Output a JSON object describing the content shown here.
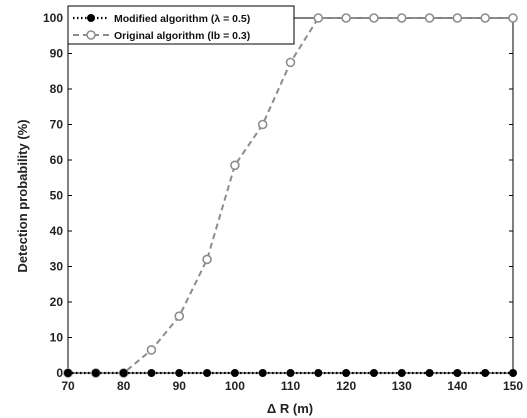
{
  "chart_data": {
    "type": "line",
    "xlabel": "Δ R (m)",
    "ylabel": "Detection probability (%)",
    "xlim": [
      70,
      150
    ],
    "ylim": [
      0,
      100
    ],
    "xticks": [
      70,
      80,
      90,
      100,
      110,
      120,
      130,
      140,
      150
    ],
    "yticks": [
      0,
      10,
      20,
      30,
      40,
      50,
      60,
      70,
      80,
      90,
      100
    ],
    "grid": false,
    "legend_position": "top-left",
    "x": [
      70,
      75,
      80,
      85,
      90,
      95,
      100,
      105,
      110,
      115,
      120,
      125,
      130,
      135,
      140,
      145,
      150
    ],
    "series": [
      {
        "name": "Modified algorithm (λ = 0.5)",
        "values": [
          0,
          0,
          0,
          0,
          0,
          0,
          0,
          0,
          0,
          0,
          0,
          0,
          0,
          0,
          0,
          0,
          0
        ],
        "line_style": "dotted",
        "marker": "filled-circle",
        "color": "#000000"
      },
      {
        "name": "Original algorithm (lb = 0.3)",
        "values": [
          0,
          0,
          0,
          6.5,
          16,
          32,
          58.5,
          70,
          87.5,
          100,
          100,
          100,
          100,
          100,
          100,
          100,
          100
        ],
        "line_style": "dashed",
        "marker": "open-circle",
        "color": "#8c8c8c"
      }
    ]
  }
}
